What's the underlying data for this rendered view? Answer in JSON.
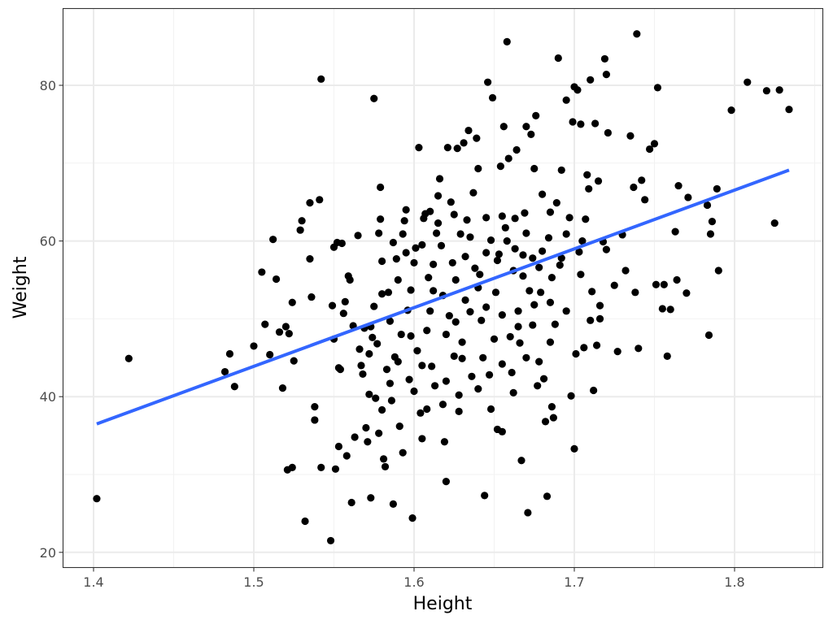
{
  "chart_data": {
    "type": "scatter",
    "xlabel": "Height",
    "ylabel": "Weight",
    "xlim": [
      1.38,
      1.855
    ],
    "ylim": [
      19,
      88
    ],
    "x_ticks": [
      1.4,
      1.5,
      1.6,
      1.7,
      1.8
    ],
    "x_tick_labels": [
      "1.4",
      "1.5",
      "1.6",
      "1.7",
      "1.8"
    ],
    "y_ticks": [
      20,
      40,
      60,
      80
    ],
    "y_tick_labels": [
      "20",
      "40",
      "60",
      "80"
    ],
    "grid": true,
    "point_color": "#000000",
    "fit_line": {
      "type": "linear",
      "color": "#3366FF",
      "x": [
        1.402,
        1.834
      ],
      "y": [
        36.5,
        69.1
      ]
    },
    "points": [
      [
        1.402,
        26.9
      ],
      [
        1.422,
        44.9
      ],
      [
        1.482,
        43.2
      ],
      [
        1.485,
        45.5
      ],
      [
        1.488,
        41.3
      ],
      [
        1.5,
        46.5
      ],
      [
        1.505,
        56.0
      ],
      [
        1.507,
        49.3
      ],
      [
        1.51,
        45.4
      ],
      [
        1.512,
        60.2
      ],
      [
        1.514,
        55.1
      ],
      [
        1.516,
        48.3
      ],
      [
        1.518,
        41.1
      ],
      [
        1.52,
        49.0
      ],
      [
        1.522,
        48.1
      ],
      [
        1.521,
        30.6
      ],
      [
        1.524,
        30.9
      ],
      [
        1.524,
        52.1
      ],
      [
        1.525,
        44.6
      ],
      [
        1.529,
        61.4
      ],
      [
        1.53,
        62.6
      ],
      [
        1.532,
        24.0
      ],
      [
        1.535,
        64.9
      ],
      [
        1.535,
        57.7
      ],
      [
        1.536,
        52.8
      ],
      [
        1.538,
        38.7
      ],
      [
        1.538,
        37.0
      ],
      [
        1.541,
        65.3
      ],
      [
        1.542,
        80.8
      ],
      [
        1.542,
        30.9
      ],
      [
        1.548,
        21.5
      ],
      [
        1.549,
        51.7
      ],
      [
        1.55,
        47.4
      ],
      [
        1.55,
        59.2
      ],
      [
        1.551,
        30.7
      ],
      [
        1.552,
        59.8
      ],
      [
        1.553,
        43.7
      ],
      [
        1.553,
        33.6
      ],
      [
        1.554,
        43.5
      ],
      [
        1.555,
        59.7
      ],
      [
        1.556,
        50.7
      ],
      [
        1.557,
        52.2
      ],
      [
        1.558,
        32.4
      ],
      [
        1.559,
        55.5
      ],
      [
        1.56,
        55.0
      ],
      [
        1.561,
        26.4
      ],
      [
        1.562,
        49.1
      ],
      [
        1.563,
        34.8
      ],
      [
        1.565,
        60.7
      ],
      [
        1.566,
        46.1
      ],
      [
        1.567,
        44.0
      ],
      [
        1.568,
        42.9
      ],
      [
        1.569,
        48.8
      ],
      [
        1.57,
        36.0
      ],
      [
        1.571,
        34.2
      ],
      [
        1.572,
        40.3
      ],
      [
        1.573,
        27.0
      ],
      [
        1.573,
        49.0
      ],
      [
        1.574,
        47.6
      ],
      [
        1.575,
        78.3
      ],
      [
        1.575,
        51.6
      ],
      [
        1.576,
        39.8
      ],
      [
        1.577,
        46.8
      ],
      [
        1.578,
        35.3
      ],
      [
        1.578,
        61.0
      ],
      [
        1.579,
        66.9
      ],
      [
        1.579,
        62.8
      ],
      [
        1.58,
        57.4
      ],
      [
        1.58,
        38.3
      ],
      [
        1.581,
        32.0
      ],
      [
        1.582,
        31.0
      ],
      [
        1.583,
        43.5
      ],
      [
        1.584,
        53.4
      ],
      [
        1.585,
        49.7
      ],
      [
        1.585,
        41.7
      ],
      [
        1.586,
        39.5
      ],
      [
        1.587,
        26.2
      ],
      [
        1.587,
        59.8
      ],
      [
        1.588,
        45.1
      ],
      [
        1.589,
        57.7
      ],
      [
        1.59,
        44.5
      ],
      [
        1.591,
        36.2
      ],
      [
        1.592,
        48.0
      ],
      [
        1.593,
        32.8
      ],
      [
        1.593,
        60.9
      ],
      [
        1.594,
        62.6
      ],
      [
        1.595,
        64.0
      ],
      [
        1.596,
        51.1
      ],
      [
        1.597,
        42.2
      ],
      [
        1.598,
        47.8
      ],
      [
        1.599,
        24.4
      ],
      [
        1.6,
        40.7
      ],
      [
        1.601,
        59.1
      ],
      [
        1.602,
        45.9
      ],
      [
        1.603,
        72.0
      ],
      [
        1.604,
        37.9
      ],
      [
        1.605,
        34.6
      ],
      [
        1.606,
        62.9
      ],
      [
        1.607,
        63.5
      ],
      [
        1.608,
        38.4
      ],
      [
        1.609,
        55.3
      ],
      [
        1.61,
        63.8
      ],
      [
        1.611,
        43.9
      ],
      [
        1.612,
        53.6
      ],
      [
        1.613,
        41.4
      ],
      [
        1.614,
        61.0
      ],
      [
        1.615,
        65.8
      ],
      [
        1.616,
        68.0
      ],
      [
        1.617,
        59.4
      ],
      [
        1.618,
        39.0
      ],
      [
        1.619,
        34.2
      ],
      [
        1.62,
        29.1
      ],
      [
        1.621,
        72.0
      ],
      [
        1.622,
        50.4
      ],
      [
        1.623,
        65.0
      ],
      [
        1.624,
        57.2
      ],
      [
        1.625,
        45.2
      ],
      [
        1.626,
        49.6
      ],
      [
        1.627,
        71.9
      ],
      [
        1.628,
        38.1
      ],
      [
        1.629,
        60.9
      ],
      [
        1.63,
        44.9
      ],
      [
        1.631,
        72.6
      ],
      [
        1.632,
        52.4
      ],
      [
        1.633,
        62.7
      ],
      [
        1.634,
        74.2
      ],
      [
        1.635,
        50.9
      ],
      [
        1.636,
        42.6
      ],
      [
        1.637,
        66.2
      ],
      [
        1.638,
        56.5
      ],
      [
        1.639,
        73.2
      ],
      [
        1.64,
        69.3
      ],
      [
        1.641,
        55.7
      ],
      [
        1.642,
        49.8
      ],
      [
        1.643,
        45.0
      ],
      [
        1.644,
        27.3
      ],
      [
        1.645,
        63.0
      ],
      [
        1.646,
        80.4
      ],
      [
        1.647,
        42.8
      ],
      [
        1.648,
        60.1
      ],
      [
        1.649,
        78.4
      ],
      [
        1.65,
        47.4
      ],
      [
        1.651,
        53.4
      ],
      [
        1.652,
        35.8
      ],
      [
        1.653,
        58.3
      ],
      [
        1.654,
        69.6
      ],
      [
        1.655,
        35.5
      ],
      [
        1.656,
        74.7
      ],
      [
        1.657,
        61.7
      ],
      [
        1.658,
        85.6
      ],
      [
        1.659,
        70.6
      ],
      [
        1.66,
        47.7
      ],
      [
        1.661,
        43.1
      ],
      [
        1.662,
        56.2
      ],
      [
        1.663,
        62.9
      ],
      [
        1.664,
        71.7
      ],
      [
        1.665,
        51.0
      ],
      [
        1.666,
        46.9
      ],
      [
        1.667,
        31.8
      ],
      [
        1.668,
        58.2
      ],
      [
        1.669,
        63.6
      ],
      [
        1.67,
        74.7
      ],
      [
        1.671,
        25.1
      ],
      [
        1.672,
        53.6
      ],
      [
        1.673,
        73.7
      ],
      [
        1.674,
        49.2
      ],
      [
        1.675,
        69.3
      ],
      [
        1.676,
        76.1
      ],
      [
        1.677,
        41.4
      ],
      [
        1.678,
        56.6
      ],
      [
        1.679,
        53.4
      ],
      [
        1.68,
        66.0
      ],
      [
        1.681,
        42.3
      ],
      [
        1.682,
        36.8
      ],
      [
        1.683,
        27.2
      ],
      [
        1.684,
        60.4
      ],
      [
        1.685,
        52.1
      ],
      [
        1.686,
        38.7
      ],
      [
        1.687,
        37.3
      ],
      [
        1.688,
        49.3
      ],
      [
        1.689,
        64.9
      ],
      [
        1.69,
        83.5
      ],
      [
        1.691,
        56.9
      ],
      [
        1.692,
        69.1
      ],
      [
        1.695,
        78.1
      ],
      [
        1.697,
        63.0
      ],
      [
        1.698,
        40.1
      ],
      [
        1.699,
        75.3
      ],
      [
        1.7,
        33.3
      ],
      [
        1.7,
        79.8
      ],
      [
        1.701,
        45.5
      ],
      [
        1.702,
        79.4
      ],
      [
        1.703,
        58.6
      ],
      [
        1.704,
        75.0
      ],
      [
        1.705,
        60.0
      ],
      [
        1.706,
        46.3
      ],
      [
        1.707,
        62.8
      ],
      [
        1.708,
        68.5
      ],
      [
        1.709,
        66.7
      ],
      [
        1.71,
        80.7
      ],
      [
        1.711,
        53.5
      ],
      [
        1.712,
        40.8
      ],
      [
        1.713,
        75.1
      ],
      [
        1.714,
        46.6
      ],
      [
        1.715,
        67.7
      ],
      [
        1.716,
        51.7
      ],
      [
        1.718,
        59.9
      ],
      [
        1.719,
        83.4
      ],
      [
        1.72,
        81.4
      ],
      [
        1.721,
        73.9
      ],
      [
        1.725,
        54.3
      ],
      [
        1.727,
        45.8
      ],
      [
        1.73,
        60.8
      ],
      [
        1.732,
        56.2
      ],
      [
        1.735,
        73.5
      ],
      [
        1.737,
        66.9
      ],
      [
        1.738,
        53.4
      ],
      [
        1.739,
        86.6
      ],
      [
        1.74,
        46.2
      ],
      [
        1.742,
        67.8
      ],
      [
        1.744,
        65.3
      ],
      [
        1.747,
        71.8
      ],
      [
        1.75,
        72.5
      ],
      [
        1.751,
        54.4
      ],
      [
        1.752,
        79.7
      ],
      [
        1.755,
        51.3
      ],
      [
        1.756,
        54.4
      ],
      [
        1.758,
        45.2
      ],
      [
        1.76,
        51.2
      ],
      [
        1.763,
        61.2
      ],
      [
        1.764,
        55.0
      ],
      [
        1.765,
        67.1
      ],
      [
        1.77,
        53.3
      ],
      [
        1.771,
        65.6
      ],
      [
        1.783,
        64.6
      ],
      [
        1.784,
        47.9
      ],
      [
        1.785,
        60.9
      ],
      [
        1.786,
        62.5
      ],
      [
        1.789,
        66.7
      ],
      [
        1.79,
        56.2
      ],
      [
        1.798,
        76.8
      ],
      [
        1.808,
        80.4
      ],
      [
        1.82,
        79.3
      ],
      [
        1.825,
        62.3
      ],
      [
        1.828,
        79.4
      ],
      [
        1.834,
        76.9
      ],
      [
        1.605,
        59.5
      ],
      [
        1.612,
        57.0
      ],
      [
        1.618,
        53.0
      ],
      [
        1.626,
        55.0
      ],
      [
        1.632,
        58.0
      ],
      [
        1.64,
        54.0
      ],
      [
        1.645,
        58.5
      ],
      [
        1.652,
        57.5
      ],
      [
        1.658,
        60.0
      ],
      [
        1.663,
        59.0
      ],
      [
        1.668,
        55.5
      ],
      [
        1.674,
        57.8
      ],
      [
        1.68,
        58.7
      ],
      [
        1.686,
        55.3
      ],
      [
        1.598,
        53.7
      ],
      [
        1.61,
        51.0
      ],
      [
        1.62,
        48.0
      ],
      [
        1.63,
        47.0
      ],
      [
        1.645,
        51.5
      ],
      [
        1.655,
        50.5
      ],
      [
        1.665,
        49.0
      ],
      [
        1.675,
        51.8
      ],
      [
        1.59,
        55.0
      ],
      [
        1.6,
        57.2
      ],
      [
        1.615,
        62.3
      ],
      [
        1.625,
        63.4
      ],
      [
        1.635,
        60.5
      ],
      [
        1.655,
        63.2
      ],
      [
        1.67,
        61.0
      ],
      [
        1.685,
        63.7
      ],
      [
        1.695,
        60.9
      ],
      [
        1.605,
        44.0
      ],
      [
        1.62,
        42.0
      ],
      [
        1.64,
        41.0
      ],
      [
        1.655,
        44.2
      ],
      [
        1.67,
        45.0
      ],
      [
        1.685,
        47.0
      ],
      [
        1.695,
        51.0
      ],
      [
        1.572,
        45.5
      ],
      [
        1.58,
        53.2
      ],
      [
        1.595,
        58.5
      ],
      [
        1.608,
        48.5
      ],
      [
        1.628,
        40.2
      ],
      [
        1.648,
        38.4
      ],
      [
        1.662,
        40.5
      ],
      [
        1.678,
        44.5
      ],
      [
        1.692,
        57.8
      ],
      [
        1.704,
        55.7
      ],
      [
        1.71,
        49.8
      ],
      [
        1.716,
        50.0
      ],
      [
        1.72,
        58.9
      ]
    ]
  }
}
